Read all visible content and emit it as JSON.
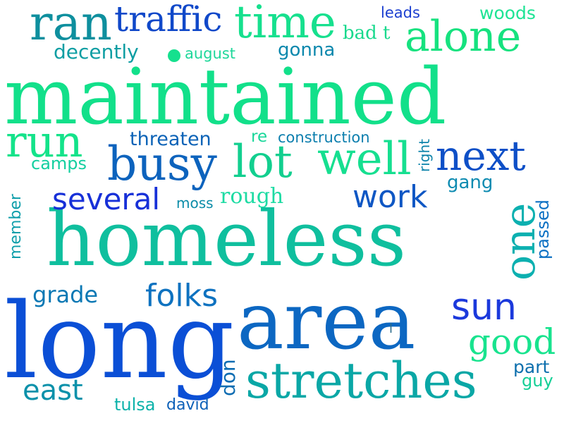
{
  "cloud": {
    "words": [
      {
        "text": "maintained",
        "color": "#12e08a"
      },
      {
        "text": "homeless",
        "color": "#0fbf9e"
      },
      {
        "text": "long",
        "color": "#0b4fd6"
      },
      {
        "text": "area",
        "color": "#0c67c2"
      },
      {
        "text": "stretches",
        "color": "#0aa7a6"
      },
      {
        "text": "ran",
        "color": "#0e8f9e"
      },
      {
        "text": "traffic",
        "color": "#1048c9"
      },
      {
        "text": "time",
        "color": "#16e08e"
      },
      {
        "text": "alone",
        "color": "#16e27f"
      },
      {
        "text": "leads",
        "color": "#1b3fd0"
      },
      {
        "text": "woods",
        "color": "#1ee495"
      },
      {
        "text": "bad t",
        "color": "#19d98d"
      },
      {
        "text": "decently",
        "color": "#0e9ea3"
      },
      {
        "text": "august",
        "color": "#1ed79a"
      },
      {
        "text": "gonna",
        "color": "#0c88ad"
      },
      {
        "text": "run",
        "color": "#14e38a"
      },
      {
        "text": "threaten",
        "color": "#0c63b7"
      },
      {
        "text": "re",
        "color": "#19d79a"
      },
      {
        "text": "construction",
        "color": "#0d7fae"
      },
      {
        "text": "busy",
        "color": "#0d63bd"
      },
      {
        "text": "lot",
        "color": "#12cf8f"
      },
      {
        "text": "well",
        "color": "#16df90"
      },
      {
        "text": "right",
        "color": "#0c83aa"
      },
      {
        "text": "next",
        "color": "#0d4fc7"
      },
      {
        "text": "camps",
        "color": "#14cfa0"
      },
      {
        "text": "several",
        "color": "#1730d8"
      },
      {
        "text": "moss",
        "color": "#0b8ca8"
      },
      {
        "text": "rough",
        "color": "#1ddba3"
      },
      {
        "text": "work",
        "color": "#0f57c4"
      },
      {
        "text": "gang",
        "color": "#0d8bb1"
      },
      {
        "text": "member",
        "color": "#0e9eaa"
      },
      {
        "text": "one",
        "color": "#0cb0b0"
      },
      {
        "text": "passed",
        "color": "#0c70c3"
      },
      {
        "text": "grade",
        "color": "#0b78b4"
      },
      {
        "text": "folks",
        "color": "#0e72c0"
      },
      {
        "text": "sun",
        "color": "#1b39dc"
      },
      {
        "text": "l",
        "color": "#2b6b8a"
      },
      {
        "text": "good",
        "color": "#18e38e"
      },
      {
        "text": "part",
        "color": "#0d6fad"
      },
      {
        "text": "guy",
        "color": "#15cf96"
      },
      {
        "text": "don",
        "color": "#0c6cb2"
      },
      {
        "text": "east",
        "color": "#0b91aa"
      },
      {
        "text": "tulsa",
        "color": "#0db2aa"
      },
      {
        "text": "david",
        "color": "#0c60b8"
      }
    ],
    "dot_color": "#16e08e"
  }
}
